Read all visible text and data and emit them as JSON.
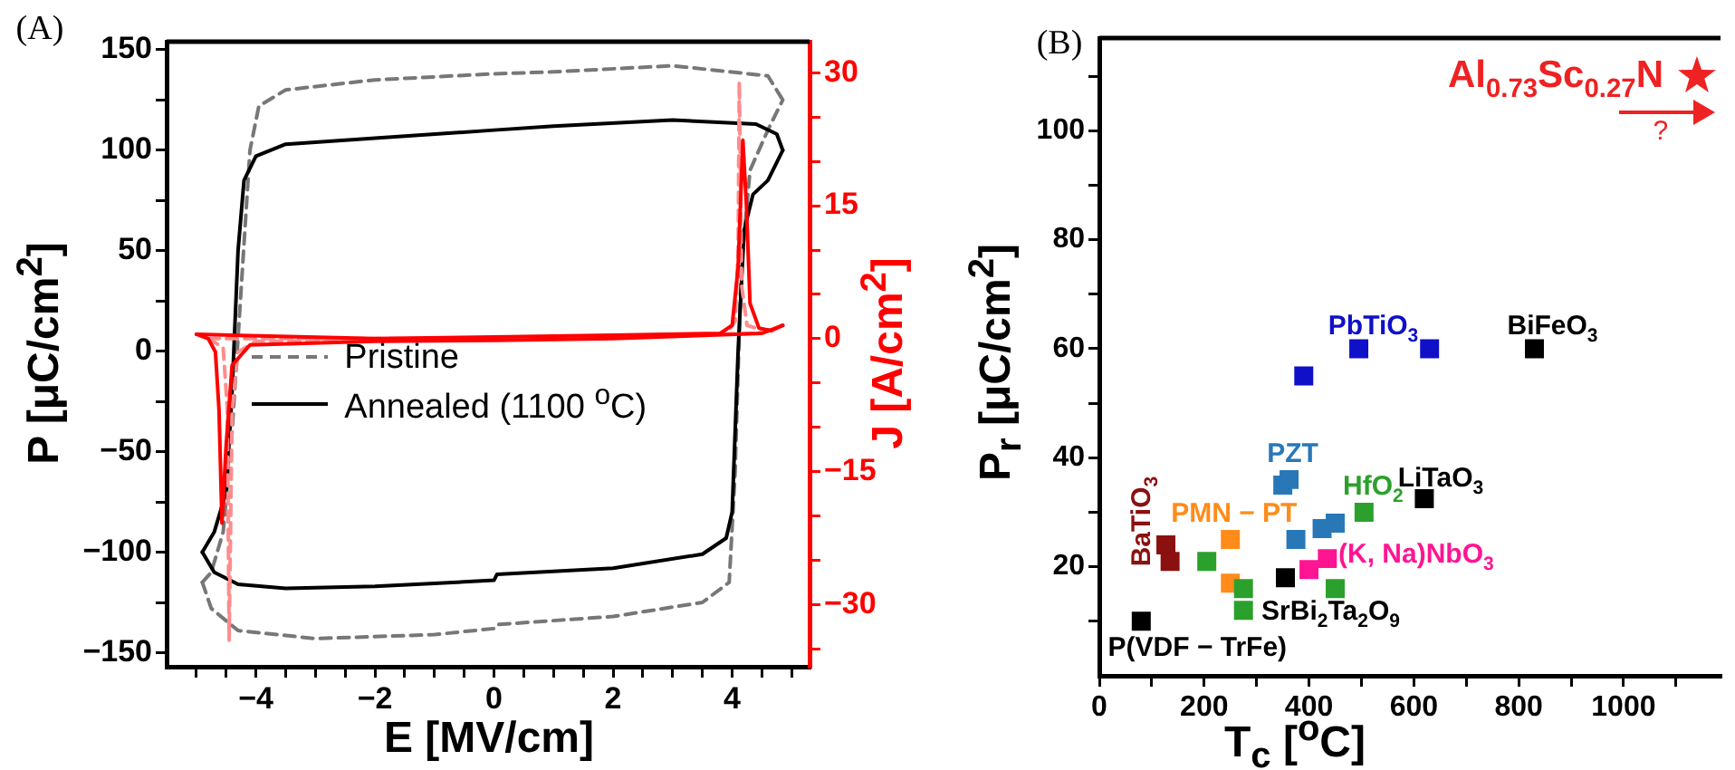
{
  "chart_data": [
    {
      "type": "line",
      "title": "(A)",
      "xlabel": "E [MV/cm]",
      "ylabel": "P [μC/cm$^{2}$]",
      "y2label": "J [A/cm$^{2}$]",
      "xlim": [
        -5.5,
        5.3
      ],
      "xticks": [
        {
          "value": -5,
          "label": null
        },
        {
          "value": -4.5,
          "label": null
        },
        {
          "value": -4,
          "label": "−4"
        },
        {
          "value": -3.5,
          "label": null
        },
        {
          "value": -3,
          "label": null
        },
        {
          "value": -2.5,
          "label": null
        },
        {
          "value": -2,
          "label": "−2"
        },
        {
          "value": -1.5,
          "label": null
        },
        {
          "value": -1,
          "label": null
        },
        {
          "value": -0.5,
          "label": null
        },
        0,
        {
          "value": 0.5,
          "label": null
        },
        {
          "value": 1,
          "label": null
        },
        {
          "value": 1.5,
          "label": null
        },
        2,
        {
          "value": 2.5,
          "label": null
        },
        {
          "value": 3,
          "label": null
        },
        {
          "value": 3.5,
          "label": null
        },
        4,
        {
          "value": 4.5,
          "label": null
        },
        {
          "value": 5,
          "label": null
        }
      ],
      "ylim": [
        -157,
        154
      ],
      "yticks": [
        {
          "value": -150,
          "label": "−150"
        },
        {
          "value": -125,
          "label": null
        },
        {
          "value": -100,
          "label": "−100"
        },
        {
          "value": -75,
          "label": null
        },
        {
          "value": -50,
          "label": "−50"
        },
        {
          "value": -25,
          "label": null
        },
        0,
        {
          "value": 25,
          "label": null
        },
        50,
        {
          "value": 75,
          "label": null
        },
        100,
        {
          "value": 125,
          "label": null
        },
        150
      ],
      "y2lim": [
        -37,
        33.5
      ],
      "y2ticks": [
        {
          "value": -35,
          "label": null
        },
        {
          "value": -30,
          "label": "−30"
        },
        {
          "value": -25,
          "label": null
        },
        {
          "value": -20,
          "label": null
        },
        {
          "value": -15,
          "label": "−15"
        },
        {
          "value": -10,
          "label": null
        },
        {
          "value": -5,
          "label": null
        },
        0,
        {
          "value": 5,
          "label": null
        },
        {
          "value": 10,
          "label": null
        },
        15,
        {
          "value": 20,
          "label": null
        },
        {
          "value": 25,
          "label": null
        },
        30
      ],
      "grid": false,
      "legend": "center left",
      "marker": "none",
      "series": [
        {
          "name": "Pristine",
          "color": "#777777",
          "line_style": "dashed",
          "x": [
            -4.9,
            -4.75,
            -4.3,
            -3,
            -1,
            0,
            0.05,
            2,
            3.5,
            3.95,
            4.05,
            4.15,
            4.3,
            4.6,
            4.85
          ],
          "values": [
            -115,
            -128,
            -139,
            -143,
            -141,
            -138,
            -136,
            -132,
            -125,
            -115,
            -60,
            40,
            90,
            110,
            125
          ]
        },
        {
          "color": "#777777",
          "line_style": "dashed",
          "x": [
            -4.9,
            -4.75,
            -4.55,
            -4.4,
            -4.25,
            -4.1,
            -3.95,
            -3.5,
            -2,
            0,
            1,
            3,
            4.6,
            4.85
          ],
          "values": [
            -115,
            -110,
            -90,
            -40,
            30,
            100,
            122,
            130,
            135,
            138,
            139,
            142,
            137,
            125
          ]
        },
        {
          "name": "Annealed (1100 $^{o}$C)",
          "color": "#000000",
          "line_style": "solid",
          "x": [
            -4.9,
            -4.7,
            -4.3,
            -3.5,
            -2,
            0,
            0.05,
            2,
            3.5,
            3.9,
            4.0,
            4.1,
            4.2,
            4.35,
            4.6,
            4.85
          ],
          "values": [
            -100,
            -110,
            -116,
            -118,
            -117,
            -114,
            -111,
            -108,
            -101,
            -93,
            -80,
            0,
            60,
            78,
            85,
            100
          ]
        },
        {
          "color": "#000000",
          "line_style": "solid",
          "x": [
            -4.9,
            -4.7,
            -4.5,
            -4.4,
            -4.3,
            -4.2,
            -4.0,
            -3.5,
            -2,
            0,
            1,
            3,
            4.4,
            4.75,
            4.85
          ],
          "values": [
            -100,
            -90,
            -70,
            -20,
            50,
            85,
            97,
            103,
            106,
            110,
            112,
            115,
            113,
            108,
            100
          ]
        },
        {
          "color": "#ff8c8c",
          "line_style": "dashed",
          "axis": "y2",
          "x": [
            -4.8,
            0,
            3.9,
            4.05,
            4.1,
            4.12,
            4.16,
            4.25,
            4.5,
            4.7
          ],
          "values": [
            0,
            0,
            0.5,
            2,
            10,
            29,
            6,
            1.5,
            1,
            1
          ]
        },
        {
          "color": "#ff8c8c",
          "line_style": "dashed",
          "axis": "y2",
          "x": [
            -4.8,
            -4.55,
            -4.48,
            -4.45,
            -4.4,
            -4.3,
            -4,
            0,
            4.4,
            4.7
          ],
          "values": [
            0,
            -1,
            -8,
            -34,
            -8,
            -1.5,
            -0.3,
            0,
            0.6,
            1
          ]
        },
        {
          "color": "#ff0000",
          "line_style": "solid",
          "axis": "y2",
          "x": [
            -5.0,
            -2,
            0,
            2,
            3.8,
            4.0,
            4.1,
            4.18,
            4.24,
            4.3,
            4.45,
            4.65,
            4.85
          ],
          "values": [
            0.5,
            0,
            0.2,
            0.4,
            0.6,
            1.5,
            8,
            22.4,
            15,
            4,
            1.2,
            0.9,
            1.5
          ]
        },
        {
          "color": "#ff0000",
          "line_style": "solid",
          "axis": "y2",
          "x": [
            -5.0,
            -4.8,
            -4.68,
            -4.62,
            -4.57,
            -4.5,
            -4.4,
            -4.1,
            -2,
            0,
            2,
            4.5,
            4.85
          ],
          "values": [
            0.5,
            0,
            -1.5,
            -8,
            -20.8,
            -12,
            -3,
            -0.7,
            -0.3,
            -0.2,
            0,
            0.6,
            1.5
          ]
        }
      ]
    },
    {
      "type": "scatter",
      "title": "(B)",
      "xlabel": "T$_{c}$ [$^{o}$C]",
      "ylabel": "P$_{r}$ [μC/cm$^{2}$]",
      "xlim": [
        0,
        1185
      ],
      "xticks": [
        0,
        {
          "value": 100,
          "label": null
        },
        200,
        {
          "value": 300,
          "label": null
        },
        400,
        {
          "value": 500,
          "label": null
        },
        600,
        {
          "value": 700,
          "label": null
        },
        800,
        {
          "value": 900,
          "label": null
        },
        1000,
        {
          "value": 1100,
          "label": null
        }
      ],
      "ylim": [
        0,
        117
      ],
      "yticks": [
        {
          "value": 10,
          "label": null
        },
        20,
        {
          "value": 30,
          "label": null
        },
        40,
        {
          "value": 50,
          "label": null
        },
        60,
        {
          "value": 70,
          "label": null
        },
        80,
        {
          "value": 90,
          "label": null
        },
        100,
        {
          "value": 110,
          "label": null
        }
      ],
      "grid": false,
      "legend": false,
      "marker": "square",
      "annotations": [
        "?"
      ],
      "series": [
        {
          "name": "P(VDF − TrFe)",
          "color": "#000000",
          "x": [
            80
          ],
          "values": [
            10
          ]
        },
        {
          "name": "BaTiO$_{3}$",
          "color": "#8b1010",
          "x": [
            127,
            135
          ],
          "values": [
            24,
            21
          ]
        },
        {
          "name": "PMN − PT",
          "color": "#ff8c1a",
          "x": [
            250,
            250
          ],
          "values": [
            25,
            17
          ]
        },
        {
          "name": "SrBi$_{2}$Ta$_{2}$O$_{9}$",
          "color": "#000000",
          "x": [
            355
          ],
          "values": [
            18
          ]
        },
        {
          "name": "HfO$_{2}$",
          "color": "#2ca02c",
          "x": [
            205,
            275,
            275,
            450,
            505
          ],
          "values": [
            21,
            16,
            12,
            16,
            30
          ]
        },
        {
          "name": "PZT",
          "color": "#2878b8",
          "x": [
            350,
            362,
            375,
            425,
            450
          ],
          "values": [
            35,
            36,
            25,
            27,
            28
          ]
        },
        {
          "name": "(K, Na)NbO$_{3}$",
          "color": "#ff1493",
          "x": [
            400,
            435
          ],
          "values": [
            19.5,
            21.5
          ]
        },
        {
          "name": "PbTiO$_{3}$",
          "color": "#1010c8",
          "x": [
            390,
            495,
            630
          ],
          "values": [
            55,
            60,
            60
          ]
        },
        {
          "name": "LiTaO$_{3}$",
          "color": "#000000",
          "x": [
            620
          ],
          "values": [
            32.5
          ]
        },
        {
          "name": "BiFeO$_{3}$",
          "color": "#000000",
          "x": [
            830
          ],
          "values": [
            60
          ]
        },
        {
          "name": "Al$_{0.73}$Sc$_{0.27}$N",
          "color": "#ee2222",
          "marker": "star",
          "x": [
            1140
          ],
          "values": [
            110
          ]
        }
      ]
    }
  ]
}
